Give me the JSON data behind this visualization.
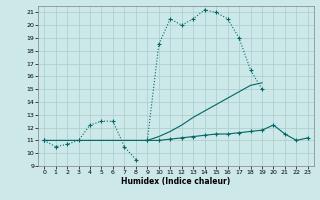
{
  "xlabel": "Humidex (Indice chaleur)",
  "xlim": [
    -0.5,
    23.5
  ],
  "ylim": [
    9,
    21.5
  ],
  "yticks": [
    9,
    10,
    11,
    12,
    13,
    14,
    15,
    16,
    17,
    18,
    19,
    20,
    21
  ],
  "xticks": [
    0,
    1,
    2,
    3,
    4,
    5,
    6,
    7,
    8,
    9,
    10,
    11,
    12,
    13,
    14,
    15,
    16,
    17,
    18,
    19,
    20,
    21,
    22,
    23
  ],
  "background_color": "#cce8e8",
  "grid_color": "#aacccc",
  "line_color": "#006666",
  "line1_x": [
    0,
    1,
    2,
    3,
    4,
    5,
    6,
    7,
    8
  ],
  "line1_y": [
    11,
    10.5,
    10.7,
    11,
    12.2,
    12.5,
    12.5,
    10.5,
    9.5
  ],
  "line2_x": [
    0,
    9,
    10,
    11,
    12,
    13,
    14,
    15,
    16,
    17,
    18,
    19
  ],
  "line2_y": [
    11,
    11,
    18.5,
    20.5,
    20,
    20.5,
    21.2,
    21,
    20.5,
    19,
    16.5,
    15
  ],
  "line3_x": [
    0,
    9,
    10,
    11,
    12,
    13,
    14,
    15,
    16,
    17,
    18,
    19
  ],
  "line3_y": [
    11,
    11,
    11.3,
    11.7,
    12.2,
    12.8,
    13.3,
    13.8,
    14.3,
    14.8,
    15.3,
    15.5
  ],
  "line4_x": [
    9,
    10,
    11,
    12,
    13,
    14,
    15,
    16,
    17,
    18,
    19,
    20,
    21,
    22,
    23
  ],
  "line4_y": [
    11,
    11,
    11.1,
    11.2,
    11.3,
    11.4,
    11.5,
    11.5,
    11.6,
    11.7,
    11.8,
    12.2,
    11.5,
    11.0,
    11.2
  ]
}
